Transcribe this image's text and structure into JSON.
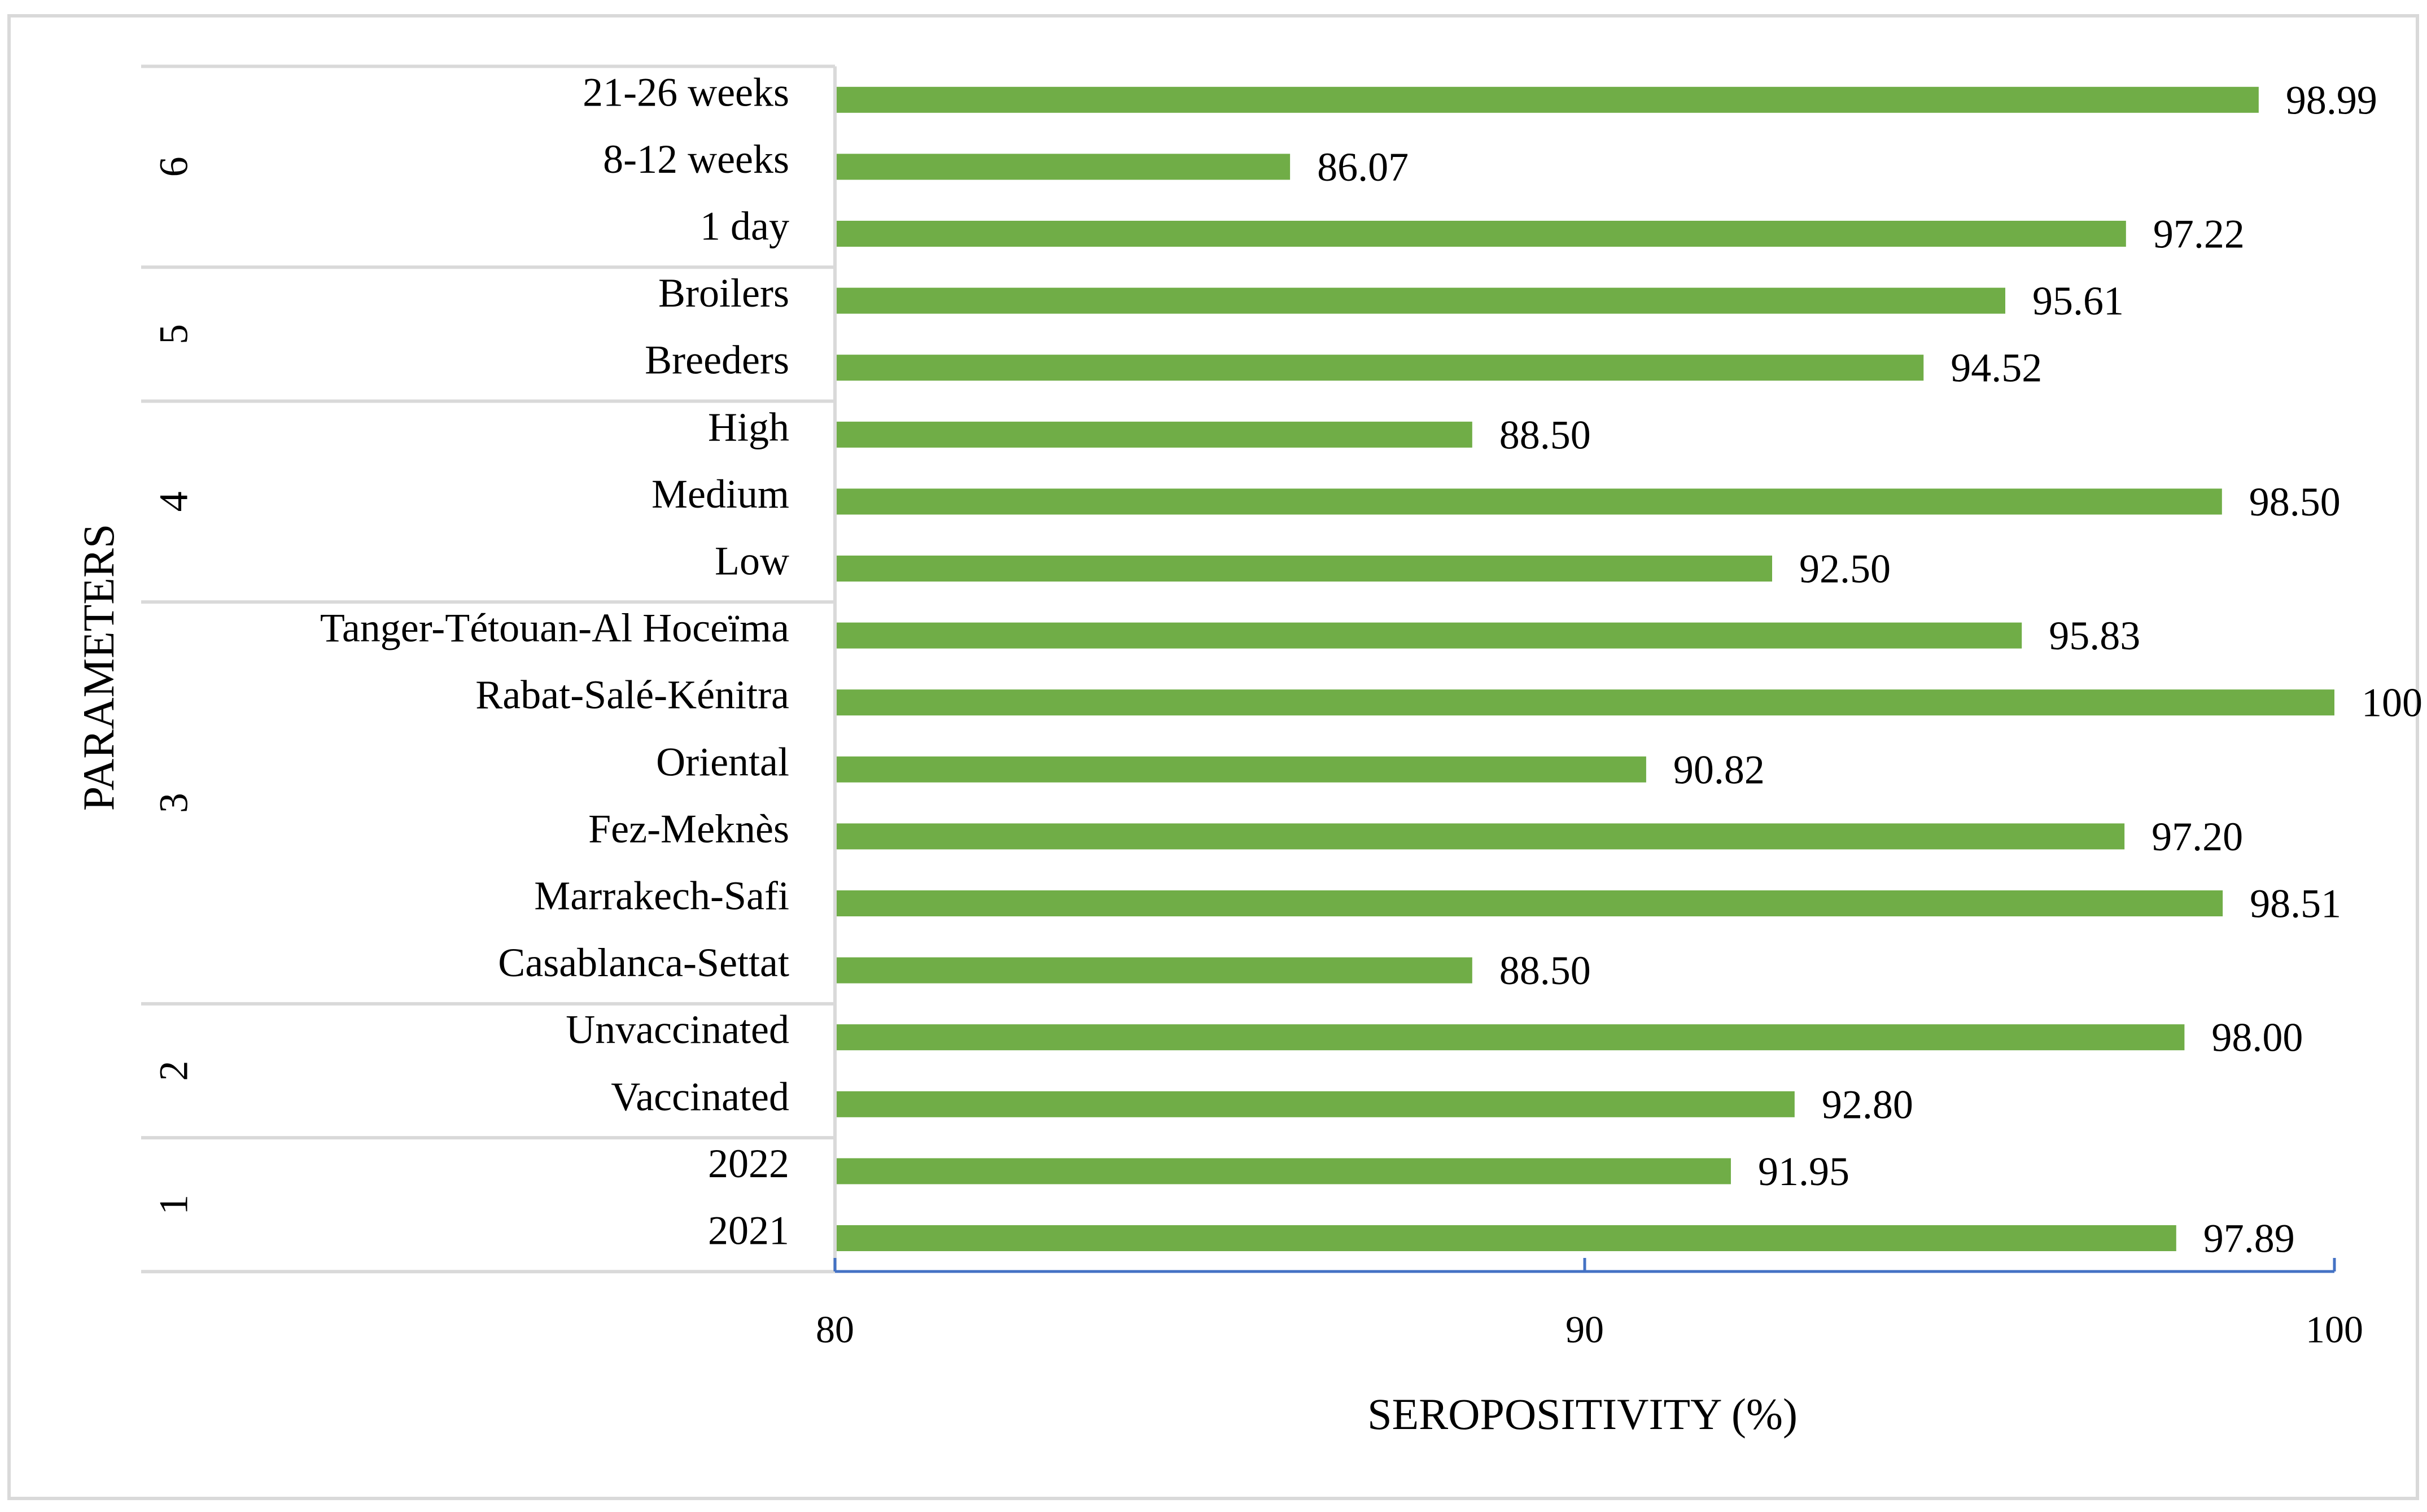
{
  "chart_data": {
    "type": "bar",
    "orientation": "horizontal",
    "title": "",
    "xlabel": "SEROPOSITIVITY (%)",
    "ylabel": "PARAMETERS",
    "xlim": [
      80,
      100
    ],
    "xticks": [
      "80",
      "90",
      "100"
    ],
    "grid": false,
    "legend": "none",
    "bar_color": "#70AD47",
    "axis_color": "#4472C4",
    "frame_color": "#D9D9D9",
    "groups": [
      {
        "label": "1",
        "items": [
          {
            "label": "2021",
            "value": 97.89,
            "value_label": "97.89"
          },
          {
            "label": "2022",
            "value": 91.95,
            "value_label": "91.95"
          }
        ]
      },
      {
        "label": "2",
        "items": [
          {
            "label": "Vaccinated",
            "value": 92.8,
            "value_label": "92.80"
          },
          {
            "label": "Unvaccinated",
            "value": 98.0,
            "value_label": "98.00"
          }
        ]
      },
      {
        "label": "3",
        "items": [
          {
            "label": "Casablanca-Settat",
            "value": 88.5,
            "value_label": "88.50"
          },
          {
            "label": "Marrakech-Safi",
            "value": 98.51,
            "value_label": "98.51"
          },
          {
            "label": "Fez-Meknès",
            "value": 97.2,
            "value_label": "97.20"
          },
          {
            "label": "Oriental",
            "value": 90.82,
            "value_label": "90.82"
          },
          {
            "label": "Rabat-Salé-Kénitra",
            "value": 100,
            "value_label": "100"
          },
          {
            "label": "Tanger-Tétouan-Al Hoceïma",
            "value": 95.83,
            "value_label": "95.83"
          }
        ]
      },
      {
        "label": "4",
        "items": [
          {
            "label": "Low",
            "value": 92.5,
            "value_label": "92.50"
          },
          {
            "label": "Medium",
            "value": 98.5,
            "value_label": "98.50"
          },
          {
            "label": "High",
            "value": 88.5,
            "value_label": "88.50"
          }
        ]
      },
      {
        "label": "5",
        "items": [
          {
            "label": "Breeders",
            "value": 94.52,
            "value_label": "94.52"
          },
          {
            "label": "Broilers",
            "value": 95.61,
            "value_label": "95.61"
          }
        ]
      },
      {
        "label": "6",
        "items": [
          {
            "label": "1 day",
            "value": 97.22,
            "value_label": "97.22"
          },
          {
            "label": "8-12 weeks",
            "value": 86.07,
            "value_label": "86.07"
          },
          {
            "label": "21-26 weeks",
            "value": 98.99,
            "value_label": "98.99"
          }
        ]
      }
    ]
  }
}
